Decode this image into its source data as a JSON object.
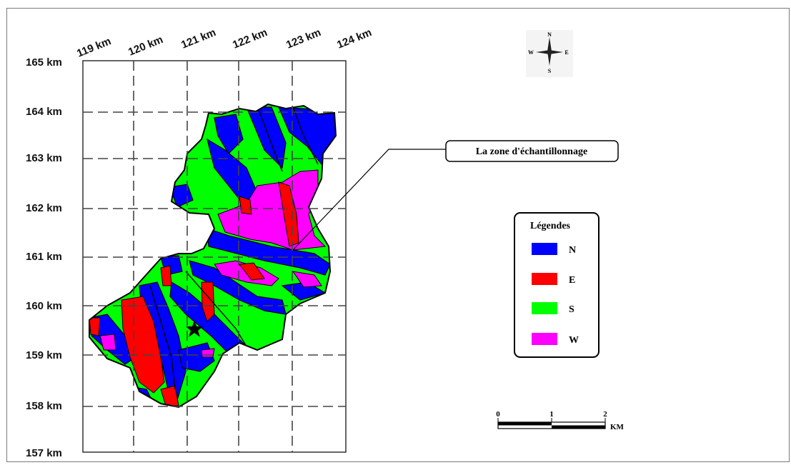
{
  "map": {
    "x_labels": [
      "119 km",
      "120 km",
      "121 km",
      "122 km",
      "123 km",
      "124 km"
    ],
    "y_labels": [
      "165 km",
      "164 km",
      "163 km",
      "162 km",
      "161 km",
      "160 km",
      "159 km",
      "158 km",
      "157 km"
    ],
    "callout": "La zone d'échantillonnage"
  },
  "compass": {
    "n": "N",
    "s": "S",
    "e": "E",
    "w": "W"
  },
  "legend": {
    "title": "Légendes",
    "items": [
      {
        "label": "N",
        "color": "#0000ff"
      },
      {
        "label": "E",
        "color": "#ff0000"
      },
      {
        "label": "S",
        "color": "#00ff00"
      },
      {
        "label": "W",
        "color": "#ff00ff"
      }
    ]
  },
  "scalebar": {
    "ticks": [
      "0",
      "1",
      "2"
    ],
    "unit": "KM"
  },
  "colors": {
    "outline": "#000000",
    "grid": "#555555"
  }
}
